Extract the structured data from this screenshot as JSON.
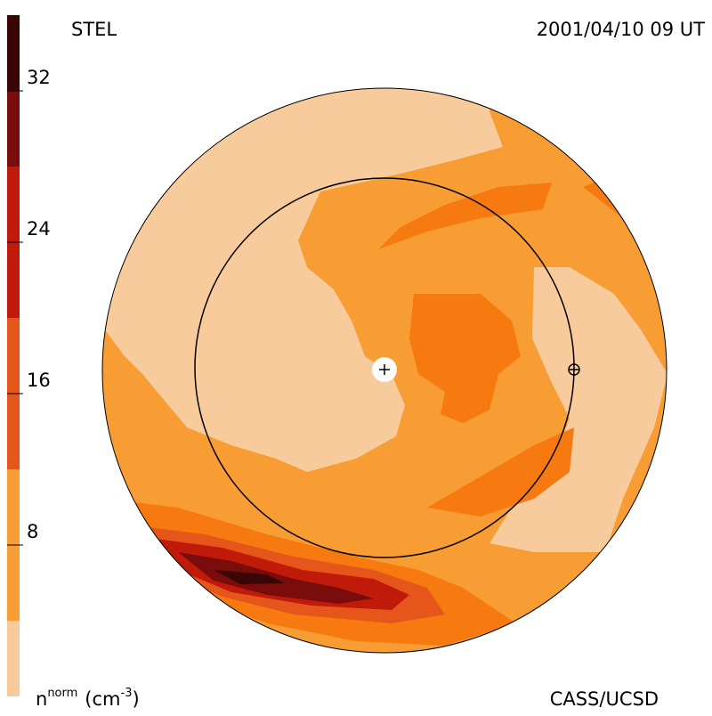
{
  "chart_data": {
    "type": "contour-map",
    "title_left": "STEL",
    "title_right": "2001/04/10 09 UT",
    "footer": "CASS/UCSD",
    "colorbar_label": {
      "base": "n",
      "sup": "norm",
      "unit": "(cm",
      "unit_sup": "-3",
      "close": ")"
    },
    "colorbar": {
      "lim": [
        0,
        36
      ],
      "levels": [
        0,
        4,
        12,
        20,
        28,
        32,
        36
      ],
      "colors": [
        "#f8cb9c",
        "#f89c34",
        "#e6561a",
        "#c01a0a",
        "#7a0c0c",
        "#3a0606"
      ],
      "ticks": [
        8,
        16,
        24,
        32
      ]
    }
  }
}
